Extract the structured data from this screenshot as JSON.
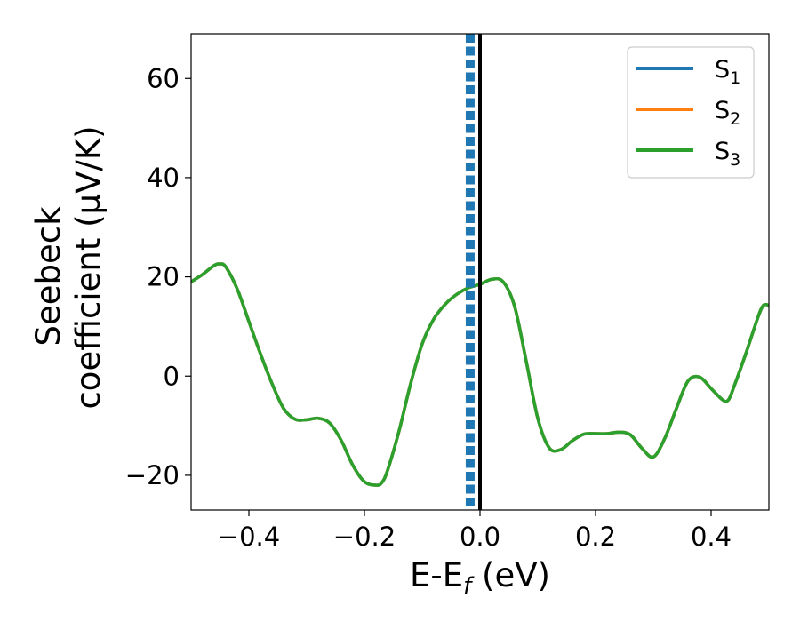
{
  "chart_data": {
    "type": "line",
    "xlabel": {
      "main": "E-E",
      "sub": "f",
      "suffix": " (eV)"
    },
    "ylabel": {
      "line1": "Seebeck",
      "line2": "coefficient  (μV/K)"
    },
    "xlim": [
      -0.5,
      0.5
    ],
    "ylim": [
      -27,
      69
    ],
    "xticks": [
      -0.4,
      -0.2,
      0.0,
      0.2,
      0.4
    ],
    "xtick_labels": [
      "−0.4",
      "−0.2",
      "0.0",
      "0.2",
      "0.4"
    ],
    "yticks": [
      -20,
      0,
      20,
      40,
      60
    ],
    "ytick_labels": [
      "−20",
      "0",
      "20",
      "40",
      "60"
    ],
    "legend_position": "top-right",
    "grid": false,
    "vertical_lines": [
      {
        "x": -0.017,
        "style": "dashed",
        "color": "#1f77b4"
      },
      {
        "x": 0.0,
        "style": "solid",
        "color": "#000000"
      }
    ],
    "series": [
      {
        "name": "S",
        "sub": "1",
        "color": "#1f77b4"
      },
      {
        "name": "S",
        "sub": "2",
        "color": "#ff7f0e"
      },
      {
        "name": "S",
        "sub": "3",
        "color": "#2ca02c"
      }
    ],
    "x": [
      -0.5,
      -0.48,
      -0.46,
      -0.45,
      -0.44,
      -0.42,
      -0.4,
      -0.38,
      -0.36,
      -0.34,
      -0.32,
      -0.3,
      -0.28,
      -0.26,
      -0.24,
      -0.22,
      -0.2,
      -0.18,
      -0.17,
      -0.16,
      -0.14,
      -0.12,
      -0.1,
      -0.08,
      -0.06,
      -0.04,
      -0.02,
      0.0,
      0.02,
      0.04,
      0.06,
      0.08,
      0.1,
      0.12,
      0.14,
      0.16,
      0.18,
      0.2,
      0.22,
      0.24,
      0.26,
      0.28,
      0.3,
      0.32,
      0.34,
      0.36,
      0.38,
      0.4,
      0.42,
      0.43,
      0.44,
      0.46,
      0.48,
      0.49,
      0.5
    ],
    "y": [
      19,
      20.5,
      22.3,
      22.6,
      22,
      17.5,
      11,
      4.5,
      -1.5,
      -6.5,
      -8.7,
      -8.8,
      -8.5,
      -9.5,
      -13,
      -18,
      -21.3,
      -22,
      -21.5,
      -19,
      -11,
      -1.5,
      6.5,
      11.5,
      14.5,
      16.5,
      17.8,
      18.5,
      19.5,
      19,
      14,
      3,
      -8.5,
      -14.5,
      -14.8,
      -13,
      -11.7,
      -11.6,
      -11.6,
      -11.3,
      -11.8,
      -14.5,
      -16.3,
      -12.5,
      -6.5,
      -1,
      -0.2,
      -2.5,
      -4.8,
      -4.8,
      -2,
      4.5,
      11.5,
      14.2,
      14.3
    ]
  }
}
